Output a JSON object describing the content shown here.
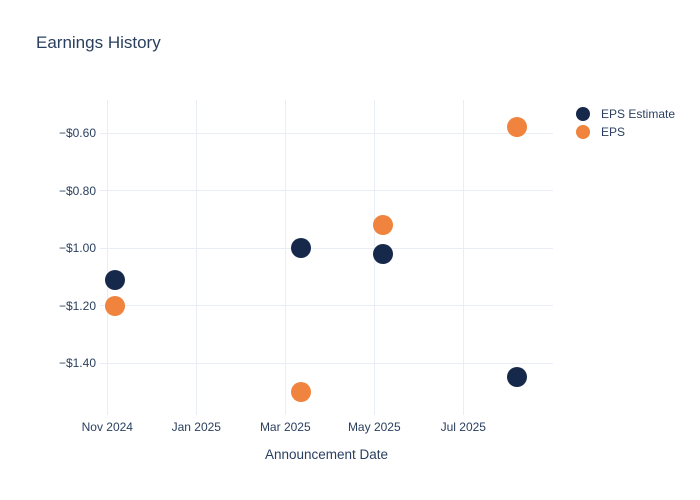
{
  "chart_data": {
    "type": "scatter",
    "title": "Earnings History",
    "xlabel": "Announcement Date",
    "ylabel": "",
    "grid": true,
    "legend_position": "top-right",
    "background": "#ffffff",
    "grid_color": "#e9edf5",
    "text_color": "#2a3f5f",
    "x_axis": {
      "ticks": [
        {
          "label": "Nov 2024",
          "m": 0
        },
        {
          "label": "Jan 2025",
          "m": 2
        },
        {
          "label": "Mar 2025",
          "m": 4
        },
        {
          "label": "May 2025",
          "m": 6
        },
        {
          "label": "Jul 2025",
          "m": 8
        }
      ]
    },
    "y_axis": {
      "ticks": [
        {
          "label": "−$0.60",
          "v": -0.6
        },
        {
          "label": "−$0.80",
          "v": -0.8
        },
        {
          "label": "−$1.00",
          "v": -1.0
        },
        {
          "label": "−$1.20",
          "v": -1.2
        },
        {
          "label": "−$1.40",
          "v": -1.4
        }
      ]
    },
    "series": [
      {
        "name": "EPS Estimate",
        "color": "#16294b",
        "points": [
          {
            "date_approx": "2024-11-06",
            "m": 0.17,
            "v": -1.11
          },
          {
            "date_approx": "2025-03-12",
            "m": 4.36,
            "v": -1.0
          },
          {
            "date_approx": "2025-05-07",
            "m": 6.19,
            "v": -1.02
          },
          {
            "date_approx": "2025-08-06",
            "m": 9.2,
            "v": -1.45
          }
        ]
      },
      {
        "name": "EPS",
        "color": "#f0833d",
        "points": [
          {
            "date_approx": "2024-11-06",
            "m": 0.17,
            "v": -1.2
          },
          {
            "date_approx": "2025-03-12",
            "m": 4.36,
            "v": -1.5
          },
          {
            "date_approx": "2025-05-07",
            "m": 6.19,
            "v": -0.92
          },
          {
            "date_approx": "2025-08-06",
            "m": 9.2,
            "v": -0.58
          }
        ]
      }
    ]
  }
}
